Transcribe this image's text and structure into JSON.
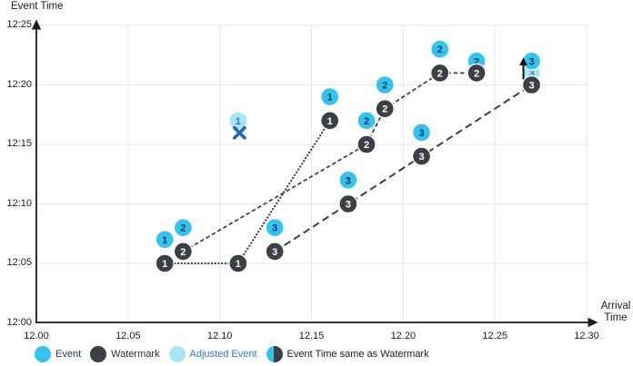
{
  "axes": {
    "y_title": "Event Time",
    "x_title_line1": "Arrival",
    "x_title_line2": "Time"
  },
  "chart_data": {
    "type": "scatter",
    "title": "",
    "x_axis": {
      "label": "Arrival Time",
      "ticks": [
        "12.00",
        "12.05",
        "12.10",
        "12.15",
        "12.20",
        "12.25",
        "12.30"
      ],
      "min": 12.0,
      "max": 12.3,
      "grid": true
    },
    "y_axis": {
      "label": "Event Time",
      "ticks": [
        "12:00",
        "12:05",
        "12:10",
        "12:15",
        "12:20",
        "12:25"
      ],
      "min": "12:00",
      "max": "12:25",
      "grid": true
    },
    "series": [
      {
        "id": "1",
        "line_style": "dotted",
        "events": [
          {
            "arrival": 12.07,
            "event_time": "12:07"
          },
          {
            "arrival": 12.16,
            "event_time": "12:19"
          }
        ],
        "watermarks": [
          {
            "arrival": 12.07,
            "event_time": "12:05"
          },
          {
            "arrival": 12.11,
            "event_time": "12:05"
          },
          {
            "arrival": 12.16,
            "event_time": "12:17"
          }
        ],
        "adjusted_events": [
          {
            "arrival": 12.11,
            "event_time": "12:17",
            "mark": "x"
          }
        ]
      },
      {
        "id": "2",
        "line_style": "dashed",
        "events": [
          {
            "arrival": 12.08,
            "event_time": "12:08"
          },
          {
            "arrival": 12.18,
            "event_time": "12:17"
          },
          {
            "arrival": 12.19,
            "event_time": "12:20"
          },
          {
            "arrival": 12.22,
            "event_time": "12:23"
          },
          {
            "arrival": 12.24,
            "event_time": "12:22"
          }
        ],
        "watermarks": [
          {
            "arrival": 12.08,
            "event_time": "12:06"
          },
          {
            "arrival": 12.18,
            "event_time": "12:15"
          },
          {
            "arrival": 12.19,
            "event_time": "12:18"
          },
          {
            "arrival": 12.22,
            "event_time": "12:21"
          },
          {
            "arrival": 12.24,
            "event_time": "12:21"
          }
        ],
        "adjusted_events": []
      },
      {
        "id": "3",
        "line_style": "long-dash",
        "events": [
          {
            "arrival": 12.13,
            "event_time": "12:08"
          },
          {
            "arrival": 12.17,
            "event_time": "12:12"
          },
          {
            "arrival": 12.21,
            "event_time": "12:16"
          },
          {
            "arrival": 12.27,
            "event_time": "12:22"
          }
        ],
        "watermarks": [
          {
            "arrival": 12.13,
            "event_time": "12:06"
          },
          {
            "arrival": 12.17,
            "event_time": "12:10"
          },
          {
            "arrival": 12.21,
            "event_time": "12:14"
          },
          {
            "arrival": 12.27,
            "event_time": "12:20"
          }
        ],
        "adjusted_events": [
          {
            "arrival": 12.27,
            "event_time": "12:21",
            "mark": "arrow-up"
          }
        ]
      }
    ]
  },
  "legend": {
    "items": [
      {
        "label": "Event",
        "swatch": "event",
        "label_color": "#17375e"
      },
      {
        "label": "Watermark",
        "swatch": "watermark",
        "label_color": "#2b2b2b"
      },
      {
        "label": "Adjusted Event",
        "swatch": "adjusted_event",
        "label_color": "#2e76d1"
      },
      {
        "label": "Event Time same as Watermark",
        "swatch": "half",
        "label_color": "#1a1a1a"
      }
    ]
  },
  "colors": {
    "event": "#34c3ee",
    "watermark": "#3b3f46",
    "adjusted_event": "#a9e5f8",
    "event_number": "#17375e",
    "adjusted_number": "#2e76d1",
    "watermark_number": "#ffffff",
    "x_mark": "#2566bd",
    "arrow": "#111111",
    "axis": "#1a1a1a",
    "gridline": "#e7e7e7",
    "watermark_line": "#3b3f46"
  }
}
